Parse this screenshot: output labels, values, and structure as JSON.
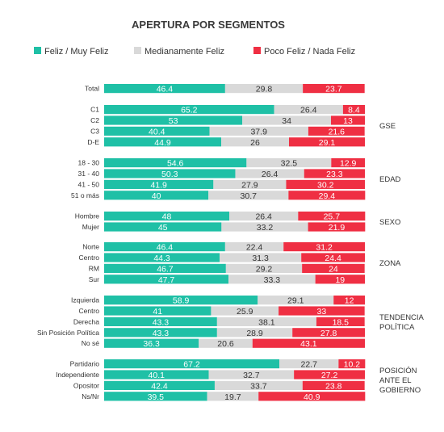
{
  "chart_data": {
    "type": "bar",
    "stacked": true,
    "orientation": "horizontal",
    "title": "APERTURA POR SEGMENTOS",
    "legend_placement": "top",
    "series": [
      {
        "name": "Feliz / Muy Feliz",
        "color": "#1fc0a6"
      },
      {
        "name": "Medianamente Feliz",
        "color": "#d9d9d9"
      },
      {
        "name": "Poco Feliz / Nada Feliz",
        "color": "#ef2f43"
      }
    ],
    "groups": [
      {
        "label": [],
        "rows": [
          {
            "category": "Total",
            "values": [
              46.4,
              29.8,
              23.7
            ]
          }
        ]
      },
      {
        "label": [
          "GSE"
        ],
        "rows": [
          {
            "category": "C1",
            "values": [
              65.2,
              26.4,
              8.4
            ]
          },
          {
            "category": "C2",
            "values": [
              53,
              34,
              13
            ]
          },
          {
            "category": "C3",
            "values": [
              40.4,
              37.9,
              21.6
            ]
          },
          {
            "category": "D-E",
            "values": [
              44.9,
              26,
              29.1
            ]
          }
        ]
      },
      {
        "label": [
          "EDAD"
        ],
        "rows": [
          {
            "category": "18 - 30",
            "values": [
              54.6,
              32.5,
              12.9
            ]
          },
          {
            "category": "31 - 40",
            "values": [
              50.3,
              26.4,
              23.3
            ]
          },
          {
            "category": "41 - 50",
            "values": [
              41.9,
              27.9,
              30.2
            ]
          },
          {
            "category": "51 o más",
            "values": [
              40,
              30.7,
              29.4
            ]
          }
        ]
      },
      {
        "label": [
          "SEXO"
        ],
        "rows": [
          {
            "category": "Hombre",
            "values": [
              48,
              26.4,
              25.7
            ]
          },
          {
            "category": "Mujer",
            "values": [
              45,
              33.2,
              21.9
            ]
          }
        ]
      },
      {
        "label": [
          "ZONA"
        ],
        "rows": [
          {
            "category": "Norte",
            "values": [
              46.4,
              22.4,
              31.2
            ]
          },
          {
            "category": "Centro",
            "values": [
              44.3,
              31.3,
              24.4
            ]
          },
          {
            "category": "RM",
            "values": [
              46.7,
              29.2,
              24
            ]
          },
          {
            "category": "Sur",
            "values": [
              47.7,
              33.3,
              19
            ]
          }
        ]
      },
      {
        "label": [
          "TENDENCIA",
          "POLÍTICA"
        ],
        "rows": [
          {
            "category": "Izquierda",
            "values": [
              58.9,
              29.1,
              12
            ]
          },
          {
            "category": "Centro",
            "values": [
              41,
              25.9,
              33
            ]
          },
          {
            "category": "Derecha",
            "values": [
              43.3,
              38.1,
              18.5
            ]
          },
          {
            "category": "Sin Posición Política",
            "values": [
              43.3,
              28.9,
              27.8
            ]
          },
          {
            "category": "No sé",
            "values": [
              36.3,
              20.6,
              43.1
            ]
          }
        ]
      },
      {
        "label": [
          "POSICIÓN",
          "ANTE EL",
          "GOBIERNO"
        ],
        "rows": [
          {
            "category": "Partidario",
            "values": [
              67.2,
              22.7,
              10.2
            ]
          },
          {
            "category": "Independiente",
            "values": [
              40.1,
              32.7,
              27.2
            ]
          },
          {
            "category": "Opositor",
            "values": [
              42.4,
              33.7,
              23.8
            ]
          },
          {
            "category": "Ns/Nr",
            "values": [
              39.5,
              19.7,
              40.9
            ]
          }
        ]
      }
    ],
    "xlim": [
      0,
      100
    ],
    "grid": false
  }
}
